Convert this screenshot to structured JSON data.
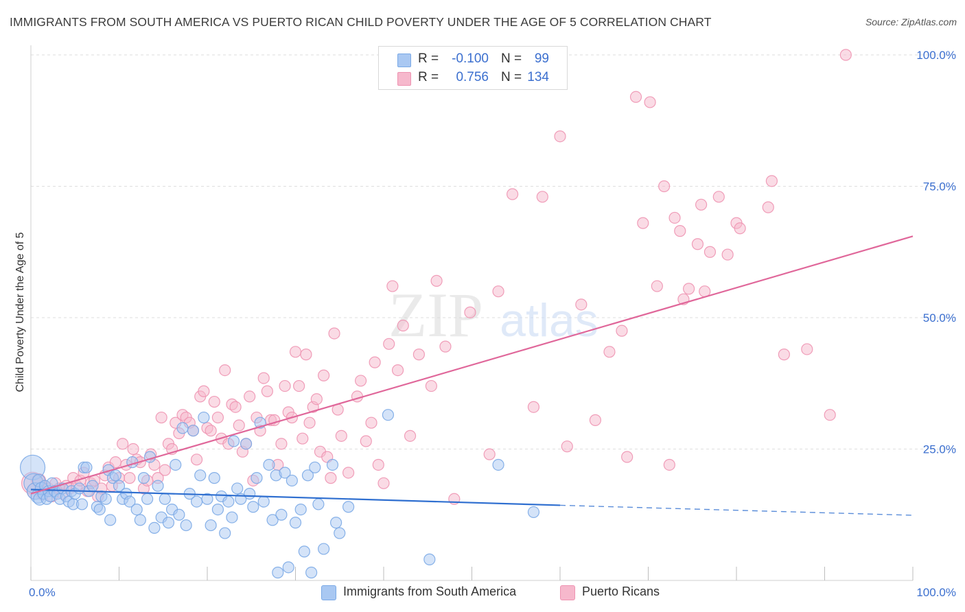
{
  "header": {
    "title": "IMMIGRANTS FROM SOUTH AMERICA VS PUERTO RICAN CHILD POVERTY UNDER THE AGE OF 5 CORRELATION CHART",
    "source": "Source: ZipAtlas.com"
  },
  "watermark": {
    "zip": "ZIP",
    "atlas": "atlas"
  },
  "legend_top": {
    "rows": [
      {
        "r_label": "R =",
        "r_value": "-0.100",
        "n_label": "N =",
        "n_value": "99"
      },
      {
        "r_label": "R =",
        "r_value": "0.756",
        "n_label": "N =",
        "n_value": "134"
      }
    ]
  },
  "legend_bottom": {
    "items": [
      "Immigrants from South America",
      "Puerto Ricans"
    ]
  },
  "chart_data": {
    "type": "scatter",
    "title": "IMMIGRANTS FROM SOUTH AMERICA VS PUERTO RICAN CHILD POVERTY UNDER THE AGE OF 5 CORRELATION CHART",
    "xlabel": "",
    "ylabel": "Child Poverty Under the Age of 5",
    "xlim": [
      0,
      100
    ],
    "ylim": [
      0,
      100
    ],
    "x_tick_labels": [
      "0.0%",
      "100.0%"
    ],
    "y_tick_labels": [
      "25.0%",
      "50.0%",
      "75.0%",
      "100.0%"
    ],
    "y_ticks": [
      25,
      50,
      75,
      100
    ],
    "grid": true,
    "legend_placement": "top-center",
    "colors": {
      "blue_fill": "#a9c8f2",
      "blue_stroke": "#7aa9e6",
      "blue_line": "#2f6fd0",
      "pink_fill": "#f6b8cc",
      "pink_stroke": "#ee93b1",
      "pink_line": "#e0679a",
      "grid": "#dedede",
      "axis_text": "#3b6fcf"
    },
    "series": [
      {
        "name": "Immigrants from South America",
        "r": -0.1,
        "n": 99,
        "trend": {
          "x0": 0,
          "y0": 17.3,
          "x1": 60,
          "y1": 14.3,
          "dash_to_x": 100,
          "dash_to_y": 12.4
        },
        "points": [
          [
            0.2,
            21.5,
            18
          ],
          [
            0.3,
            18.5,
            14
          ],
          [
            0.5,
            17,
            12
          ],
          [
            0.8,
            16,
            10
          ],
          [
            0.9,
            19,
            9
          ],
          [
            1,
            15.5,
            9
          ],
          [
            1.2,
            17.5,
            9
          ],
          [
            1.4,
            16.5,
            8
          ],
          [
            1.6,
            18,
            8
          ],
          [
            1.8,
            15.5,
            8
          ],
          [
            2,
            17,
            8
          ],
          [
            2.2,
            16,
            8
          ],
          [
            2.4,
            18.5,
            8
          ],
          [
            2.7,
            17,
            8
          ],
          [
            3,
            16.5,
            8
          ],
          [
            3.3,
            15.5,
            8
          ],
          [
            3.6,
            17.5,
            8
          ],
          [
            4,
            16,
            8
          ],
          [
            4.3,
            15,
            8
          ],
          [
            4.6,
            17,
            8
          ],
          [
            4.8,
            14.5,
            8
          ],
          [
            5,
            16.5,
            8
          ],
          [
            5.5,
            17.5,
            8
          ],
          [
            5.8,
            14.5,
            8
          ],
          [
            6,
            21.5,
            8
          ],
          [
            6.3,
            21.5,
            8
          ],
          [
            6.6,
            17,
            8
          ],
          [
            7,
            18,
            8
          ],
          [
            7.5,
            14,
            8
          ],
          [
            7.8,
            13.5,
            8
          ],
          [
            8,
            16,
            8
          ],
          [
            8.5,
            15.5,
            8
          ],
          [
            8.8,
            21,
            8
          ],
          [
            9,
            11.5,
            8
          ],
          [
            9.3,
            19.5,
            8
          ],
          [
            9.6,
            20,
            8
          ],
          [
            10,
            18,
            8
          ],
          [
            10.4,
            15.5,
            8
          ],
          [
            10.8,
            16.5,
            8
          ],
          [
            11.2,
            15,
            8
          ],
          [
            11.5,
            22.5,
            8
          ],
          [
            12,
            13.5,
            8
          ],
          [
            12.4,
            11.5,
            8
          ],
          [
            12.8,
            19.5,
            8
          ],
          [
            13.2,
            15.5,
            8
          ],
          [
            13.5,
            23.5,
            8
          ],
          [
            14,
            10,
            8
          ],
          [
            14.4,
            18,
            8
          ],
          [
            14.8,
            12,
            8
          ],
          [
            15.2,
            15.5,
            8
          ],
          [
            15.6,
            11,
            8
          ],
          [
            16,
            13.5,
            8
          ],
          [
            16.4,
            22,
            8
          ],
          [
            16.8,
            12.5,
            8
          ],
          [
            17.2,
            29,
            8
          ],
          [
            17.6,
            10.5,
            8
          ],
          [
            18,
            16.5,
            8
          ],
          [
            18.4,
            28.5,
            8
          ],
          [
            18.8,
            15,
            8
          ],
          [
            19.2,
            20,
            8
          ],
          [
            19.6,
            31,
            8
          ],
          [
            20,
            15.5,
            8
          ],
          [
            20.4,
            10.5,
            8
          ],
          [
            20.8,
            19.5,
            8
          ],
          [
            21.2,
            13.5,
            8
          ],
          [
            21.6,
            16,
            8
          ],
          [
            22,
            9,
            8
          ],
          [
            22.4,
            15,
            8
          ],
          [
            22.8,
            12,
            8
          ],
          [
            23,
            26.5,
            8
          ],
          [
            23.4,
            17.5,
            8
          ],
          [
            23.8,
            15.5,
            8
          ],
          [
            24.4,
            26,
            8
          ],
          [
            24.8,
            16.5,
            8
          ],
          [
            25.2,
            14,
            8
          ],
          [
            25.6,
            19.5,
            8
          ],
          [
            26,
            30,
            8
          ],
          [
            26.4,
            15,
            8
          ],
          [
            27,
            22,
            8
          ],
          [
            27.4,
            11.5,
            8
          ],
          [
            27.8,
            20,
            8
          ],
          [
            28,
            1.5,
            8
          ],
          [
            28.4,
            12.5,
            8
          ],
          [
            28.8,
            20.5,
            8
          ],
          [
            29.2,
            2.5,
            8
          ],
          [
            29.6,
            19,
            8
          ],
          [
            30,
            11,
            8
          ],
          [
            30.6,
            13.5,
            8
          ],
          [
            31,
            5.5,
            8
          ],
          [
            31.4,
            20,
            8
          ],
          [
            31.8,
            1.5,
            8
          ],
          [
            32.2,
            21.5,
            8
          ],
          [
            32.6,
            14.5,
            8
          ],
          [
            33.2,
            6,
            8
          ],
          [
            34.2,
            22,
            8
          ],
          [
            34.6,
            11,
            8
          ],
          [
            35,
            9,
            8
          ],
          [
            36,
            14,
            8
          ],
          [
            40.5,
            31.5,
            8
          ],
          [
            45.2,
            4,
            8
          ],
          [
            53,
            22,
            8
          ],
          [
            57,
            13,
            8
          ]
        ]
      },
      {
        "name": "Puerto Ricans",
        "r": 0.756,
        "n": 134,
        "trend": {
          "x0": 0,
          "y0": 16.5,
          "x1": 100,
          "y1": 65.5
        },
        "points": [
          [
            0.2,
            18.5,
            16
          ],
          [
            0.5,
            17,
            12
          ],
          [
            0.9,
            19,
            10
          ],
          [
            1.3,
            16.5,
            9
          ],
          [
            1.6,
            18,
            8
          ],
          [
            2,
            17.5,
            8
          ],
          [
            2.4,
            16,
            8
          ],
          [
            2.8,
            18.5,
            8
          ],
          [
            3.2,
            17.5,
            8
          ],
          [
            3.6,
            16.5,
            8
          ],
          [
            4,
            18,
            8
          ],
          [
            4.4,
            17.5,
            8
          ],
          [
            4.8,
            19.5,
            8
          ],
          [
            5.2,
            18,
            8
          ],
          [
            5.6,
            19,
            8
          ],
          [
            6,
            20.5,
            8
          ],
          [
            6.4,
            17,
            8
          ],
          [
            6.8,
            18.5,
            8
          ],
          [
            7.2,
            19,
            8
          ],
          [
            7.6,
            16,
            8
          ],
          [
            8,
            17.5,
            8
          ],
          [
            8.4,
            20,
            8
          ],
          [
            8.8,
            21.5,
            8
          ],
          [
            9.2,
            18,
            8
          ],
          [
            9.6,
            22.5,
            8
          ],
          [
            10,
            19.5,
            8
          ],
          [
            10.4,
            26,
            8
          ],
          [
            10.8,
            22,
            8
          ],
          [
            11.2,
            19.5,
            8
          ],
          [
            11.6,
            25,
            8
          ],
          [
            12,
            23,
            8
          ],
          [
            12.4,
            22.5,
            8
          ],
          [
            12.8,
            17.5,
            8
          ],
          [
            13.2,
            19,
            8
          ],
          [
            13.6,
            24,
            8
          ],
          [
            14,
            22,
            8
          ],
          [
            14.4,
            19.5,
            8
          ],
          [
            14.8,
            31,
            8
          ],
          [
            15.2,
            21,
            8
          ],
          [
            15.6,
            26,
            8
          ],
          [
            16,
            25,
            8
          ],
          [
            16.4,
            30,
            8
          ],
          [
            16.8,
            28,
            8
          ],
          [
            17.2,
            31.5,
            8
          ],
          [
            17.6,
            31,
            8
          ],
          [
            18,
            30,
            8
          ],
          [
            18.4,
            28.5,
            8
          ],
          [
            18.8,
            23,
            8
          ],
          [
            19.2,
            35,
            8
          ],
          [
            19.6,
            36,
            8
          ],
          [
            20,
            29,
            8
          ],
          [
            20.4,
            28.5,
            8
          ],
          [
            20.8,
            34,
            8
          ],
          [
            21.2,
            31,
            8
          ],
          [
            21.6,
            27,
            8
          ],
          [
            22,
            40,
            8
          ],
          [
            22.4,
            26,
            8
          ],
          [
            22.8,
            33.5,
            8
          ],
          [
            23.2,
            33,
            8
          ],
          [
            23.6,
            29.5,
            8
          ],
          [
            24,
            24.5,
            8
          ],
          [
            24.4,
            26,
            8
          ],
          [
            24.8,
            35,
            8
          ],
          [
            25.2,
            19,
            8
          ],
          [
            25.6,
            31,
            8
          ],
          [
            26,
            28.5,
            8
          ],
          [
            26.4,
            38.5,
            8
          ],
          [
            26.8,
            36,
            8
          ],
          [
            27.2,
            30.5,
            8
          ],
          [
            27.6,
            30.5,
            8
          ],
          [
            28,
            22,
            8
          ],
          [
            28.4,
            26,
            8
          ],
          [
            28.8,
            37,
            8
          ],
          [
            29.2,
            32,
            8
          ],
          [
            29.6,
            31,
            8
          ],
          [
            30,
            43.5,
            8
          ],
          [
            30.4,
            37,
            8
          ],
          [
            30.8,
            27,
            8
          ],
          [
            31.2,
            43,
            8
          ],
          [
            31.6,
            30,
            8
          ],
          [
            32,
            33,
            8
          ],
          [
            32.4,
            34.5,
            8
          ],
          [
            32.8,
            24.5,
            8
          ],
          [
            33.2,
            39,
            8
          ],
          [
            33.6,
            23.5,
            8
          ],
          [
            34,
            19.5,
            8
          ],
          [
            34.4,
            47,
            8
          ],
          [
            34.8,
            32.5,
            8
          ],
          [
            35.2,
            27.5,
            8
          ],
          [
            36,
            20.5,
            8
          ],
          [
            37,
            35,
            8
          ],
          [
            37.4,
            38,
            8
          ],
          [
            38,
            26.5,
            8
          ],
          [
            38.6,
            30,
            8
          ],
          [
            39,
            41.5,
            8
          ],
          [
            39.4,
            22,
            8
          ],
          [
            40,
            18.5,
            8
          ],
          [
            40.6,
            45,
            8
          ],
          [
            41,
            56,
            8
          ],
          [
            41.6,
            40,
            8
          ],
          [
            42.2,
            48.5,
            8
          ],
          [
            43,
            27.5,
            8
          ],
          [
            44,
            43,
            8
          ],
          [
            45.4,
            37,
            8
          ],
          [
            46,
            57,
            8
          ],
          [
            47,
            44.5,
            8
          ],
          [
            48,
            15.5,
            8
          ],
          [
            49.8,
            51,
            8
          ],
          [
            52,
            24,
            8
          ],
          [
            53,
            55,
            8
          ],
          [
            54.6,
            73.5,
            8
          ],
          [
            57,
            33,
            8
          ],
          [
            58,
            73,
            8
          ],
          [
            60,
            84.5,
            8
          ],
          [
            60.8,
            25.5,
            8
          ],
          [
            62.4,
            52.5,
            8
          ],
          [
            64,
            30.5,
            8
          ],
          [
            65.6,
            43.5,
            8
          ],
          [
            67,
            47.5,
            8
          ],
          [
            67.6,
            23.5,
            8
          ],
          [
            68.6,
            92,
            8
          ],
          [
            69.4,
            68,
            8
          ],
          [
            70.2,
            91,
            8
          ],
          [
            71,
            56,
            8
          ],
          [
            71.8,
            75,
            8
          ],
          [
            72.4,
            22,
            8
          ],
          [
            73,
            69,
            8
          ],
          [
            73.6,
            66.5,
            8
          ],
          [
            74,
            53.5,
            8
          ],
          [
            74.6,
            55.5,
            8
          ],
          [
            75.6,
            64,
            8
          ],
          [
            76,
            71.5,
            8
          ],
          [
            76.4,
            55,
            8
          ],
          [
            77,
            62.5,
            8
          ],
          [
            78,
            73,
            8
          ],
          [
            79,
            62,
            8
          ],
          [
            80,
            68,
            8
          ],
          [
            80.4,
            67,
            8
          ],
          [
            83.6,
            71,
            8
          ],
          [
            84,
            76,
            8
          ],
          [
            85.4,
            43,
            8
          ],
          [
            88,
            44,
            8
          ],
          [
            90.6,
            31.5,
            8
          ],
          [
            92.4,
            100,
            8
          ]
        ]
      }
    ]
  }
}
